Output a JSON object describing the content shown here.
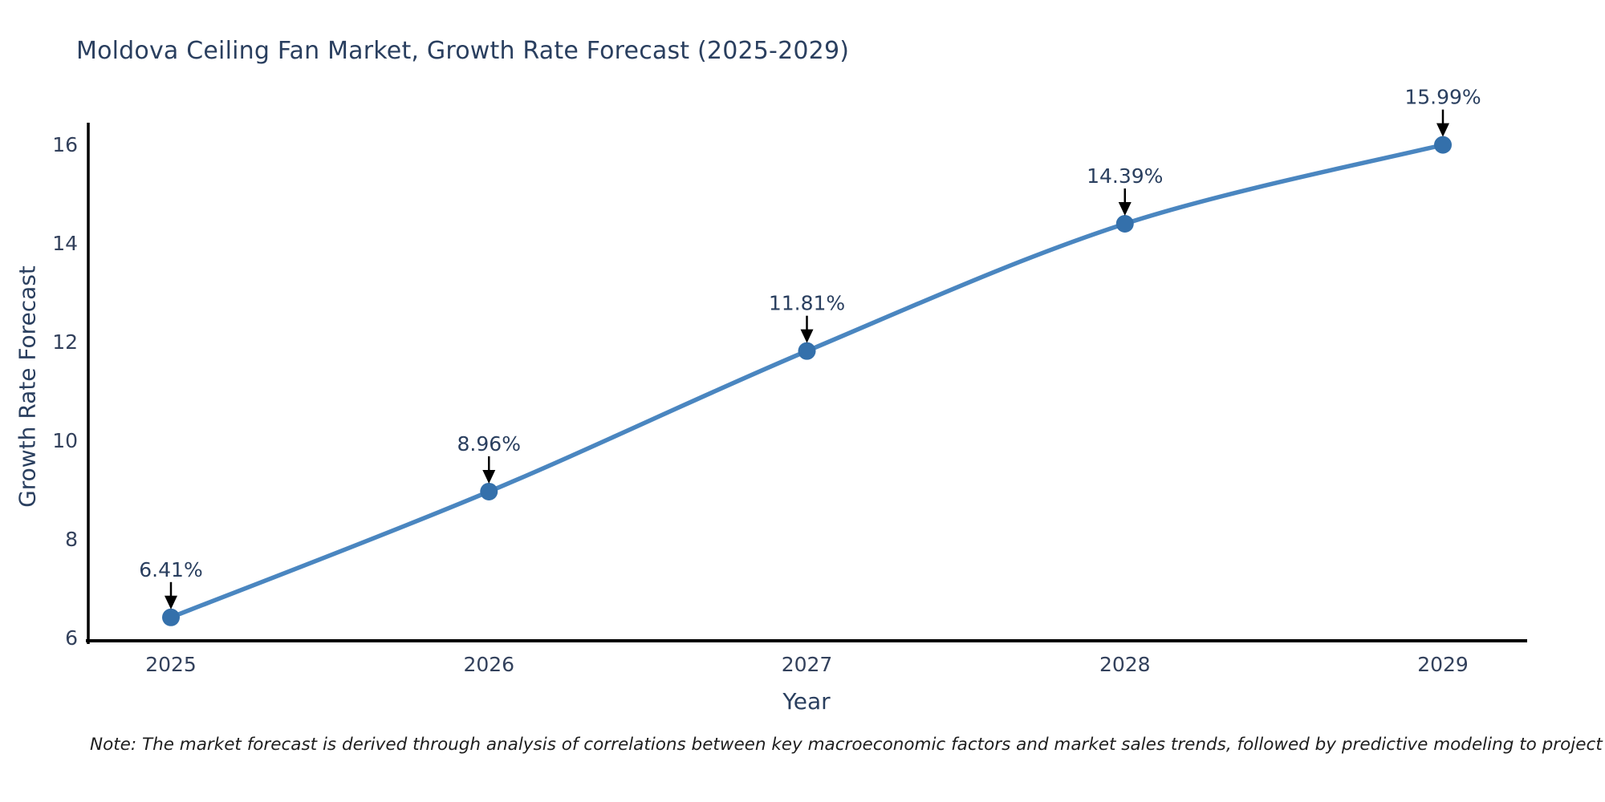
{
  "page": {
    "background": "#ffffff"
  },
  "note": "Note: The market forecast is derived through analysis of correlations between key macroeconomic factors and market sales trends, followed by predictive modeling to project future sales",
  "chart_data": {
    "type": "line",
    "title": "Moldova Ceiling Fan Market, Growth Rate Forecast (2025-2029)",
    "xlabel": "Year",
    "ylabel": "Growth Rate Forecast",
    "categories": [
      "2025",
      "2026",
      "2027",
      "2028",
      "2029"
    ],
    "series": [
      {
        "name": "Growth Rate Forecast",
        "values": [
          6.41,
          8.96,
          11.81,
          14.39,
          15.99
        ]
      }
    ],
    "point_labels": [
      "6.41%",
      "8.96%",
      "11.81%",
      "14.39%",
      "15.99%"
    ],
    "yticks": [
      6,
      8,
      10,
      12,
      14,
      16
    ],
    "ylim": [
      6,
      16.4
    ],
    "grid": false,
    "legend_position": "none",
    "marker_style": "circle",
    "annotation_style": "value-label-with-down-arrow",
    "colors": {
      "line": "#4a86c0",
      "marker": "#3470ab",
      "axis": "#000000",
      "text": "#2a3f5f",
      "tick_text": "#33415c",
      "annotation_arrow": "#000000",
      "note_text": "#1e1e1e"
    }
  }
}
